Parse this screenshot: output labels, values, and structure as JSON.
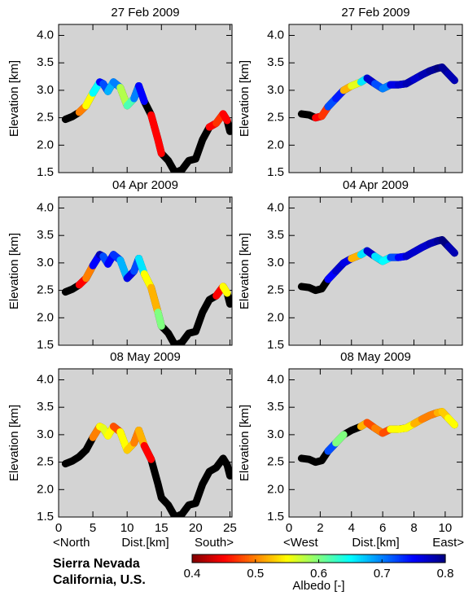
{
  "chart_data": [
    {
      "type": "line",
      "title": "27 Feb  2009",
      "y_label": "Elevation [km]",
      "x": [
        1,
        2,
        3,
        4,
        5,
        6,
        6.5,
        7.2,
        8,
        9,
        10,
        11,
        11.7,
        12.5,
        13.5,
        14.5,
        15,
        16,
        17,
        18,
        19,
        20,
        21,
        22,
        23,
        24,
        24.6,
        25
      ],
      "series": [
        {
          "values": [
            2.47,
            2.52,
            2.6,
            2.72,
            2.95,
            3.15,
            3.12,
            2.98,
            3.15,
            3.05,
            2.72,
            2.85,
            3.08,
            2.8,
            2.55,
            2.1,
            1.85,
            1.72,
            1.5,
            1.55,
            1.72,
            1.75,
            2.1,
            2.33,
            2.4,
            2.57,
            2.45,
            2.25
          ],
          "albedo": [
            null,
            null,
            0.5,
            0.55,
            0.65,
            0.75,
            0.72,
            0.68,
            0.7,
            0.58,
            0.62,
            0.7,
            0.75,
            null,
            0.45,
            0.45,
            null,
            null,
            null,
            null,
            null,
            null,
            null,
            0.45,
            0.47,
            0.45,
            null,
            null
          ]
        }
      ],
      "xlim": [
        0,
        25.3
      ],
      "xticks": [
        0,
        5,
        10,
        15,
        20,
        25
      ],
      "ylim": [
        1.5,
        4.2
      ],
      "yticks": [
        1.5,
        {
          "value": 2,
          "label": "2.0"
        },
        2.5,
        {
          "value": 3,
          "label": "3.0"
        },
        3.5,
        {
          "value": 4,
          "label": "4.0"
        }
      ]
    },
    {
      "type": "line",
      "title": "27 Feb  2009",
      "y_label": "Elevation [km]",
      "x": [
        0.8,
        1.3,
        1.7,
        2.1,
        2.5,
        3,
        3.5,
        4,
        4.6,
        5,
        5.5,
        6,
        6.5,
        7,
        7.5,
        8,
        8.5,
        9,
        9.5,
        9.8,
        10.2,
        10.6
      ],
      "series": [
        {
          "values": [
            2.57,
            2.55,
            2.5,
            2.53,
            2.7,
            2.85,
            3.0,
            3.08,
            3.15,
            3.22,
            3.12,
            3.03,
            3.1,
            3.1,
            3.12,
            3.2,
            3.28,
            3.35,
            3.4,
            3.42,
            3.3,
            3.18
          ],
          "albedo": [
            null,
            null,
            0.45,
            0.47,
            0.72,
            0.74,
            0.52,
            0.56,
            0.66,
            0.77,
            0.72,
            0.7,
            0.76,
            0.77,
            0.78,
            0.77,
            0.78,
            0.79,
            0.8,
            0.79,
            0.78,
            null
          ]
        }
      ],
      "xlim": [
        0,
        11.1
      ],
      "xticks": [
        0,
        2,
        4,
        6,
        8,
        10
      ],
      "ylim": [
        1.5,
        4.2
      ],
      "yticks": [
        1.5,
        {
          "value": 2,
          "label": "2.0"
        },
        2.5,
        {
          "value": 3,
          "label": "3.0"
        },
        3.5,
        {
          "value": 4,
          "label": "4.0"
        }
      ]
    },
    {
      "type": "line",
      "title": "04 Apr  2009",
      "y_label": "Elevation [km]",
      "x": [
        1,
        2,
        3,
        4,
        5,
        6,
        6.5,
        7.2,
        8,
        9,
        10,
        11,
        11.7,
        12.5,
        13.5,
        14.5,
        15,
        16,
        17,
        18,
        19,
        20,
        21,
        22,
        23,
        24,
        24.6,
        25
      ],
      "series": [
        {
          "values": [
            2.47,
            2.52,
            2.6,
            2.72,
            2.95,
            3.15,
            3.12,
            2.98,
            3.15,
            3.05,
            2.72,
            2.85,
            3.08,
            2.8,
            2.55,
            2.1,
            1.85,
            1.72,
            1.5,
            1.55,
            1.72,
            1.75,
            2.1,
            2.33,
            2.4,
            2.57,
            2.45,
            2.25
          ],
          "albedo": [
            null,
            null,
            0.45,
            0.5,
            0.75,
            0.78,
            0.72,
            0.75,
            0.73,
            0.68,
            0.76,
            0.72,
            0.66,
            0.55,
            0.52,
            0.6,
            null,
            null,
            null,
            null,
            null,
            null,
            null,
            null,
            0.45,
            0.55,
            null,
            null
          ]
        }
      ],
      "xlim": [
        0,
        25.3
      ],
      "xticks": [
        0,
        5,
        10,
        15,
        20,
        25
      ],
      "ylim": [
        1.5,
        4.2
      ],
      "yticks": [
        1.5,
        {
          "value": 2,
          "label": "2.0"
        },
        2.5,
        {
          "value": 3,
          "label": "3.0"
        },
        3.5,
        {
          "value": 4,
          "label": "4.0"
        }
      ]
    },
    {
      "type": "line",
      "title": "04 Apr  2009",
      "y_label": "Elevation [km]",
      "x": [
        0.8,
        1.3,
        1.7,
        2.1,
        2.5,
        3,
        3.5,
        4,
        4.6,
        5,
        5.5,
        6,
        6.5,
        7,
        7.5,
        8,
        8.5,
        9,
        9.5,
        9.8,
        10.2,
        10.6
      ],
      "series": [
        {
          "values": [
            2.57,
            2.55,
            2.5,
            2.53,
            2.7,
            2.85,
            3.0,
            3.08,
            3.15,
            3.22,
            3.12,
            3.03,
            3.1,
            3.1,
            3.12,
            3.2,
            3.28,
            3.35,
            3.4,
            3.42,
            3.3,
            3.18
          ],
          "albedo": [
            null,
            null,
            null,
            null,
            0.75,
            0.77,
            0.76,
            0.52,
            0.66,
            0.77,
            0.66,
            0.65,
            0.72,
            0.75,
            0.77,
            0.77,
            0.77,
            0.78,
            0.79,
            0.8,
            0.78,
            null
          ]
        }
      ],
      "xlim": [
        0,
        11.1
      ],
      "xticks": [
        0,
        2,
        4,
        6,
        8,
        10
      ],
      "ylim": [
        1.5,
        4.2
      ],
      "yticks": [
        1.5,
        {
          "value": 2,
          "label": "2.0"
        },
        2.5,
        {
          "value": 3,
          "label": "3.0"
        },
        3.5,
        {
          "value": 4,
          "label": "4.0"
        }
      ]
    },
    {
      "type": "line",
      "title": "08 May  2009",
      "y_label": "Elevation [km]",
      "x_label": [
        "<North",
        "Dist.[km]",
        "South>"
      ],
      "x": [
        1,
        2,
        3,
        4,
        5,
        6,
        6.5,
        7.2,
        8,
        9,
        10,
        11,
        11.7,
        12.5,
        13.5,
        14.5,
        15,
        16,
        17,
        18,
        19,
        20,
        21,
        22,
        23,
        24,
        24.6,
        25
      ],
      "series": [
        {
          "values": [
            2.47,
            2.52,
            2.6,
            2.72,
            2.95,
            3.15,
            3.12,
            2.98,
            3.15,
            3.05,
            2.72,
            2.85,
            3.08,
            2.8,
            2.55,
            2.1,
            1.85,
            1.72,
            1.5,
            1.55,
            1.72,
            1.75,
            2.1,
            2.33,
            2.4,
            2.57,
            2.45,
            2.25
          ],
          "albedo": [
            null,
            null,
            null,
            null,
            0.5,
            0.55,
            0.56,
            0.55,
            0.48,
            0.55,
            0.53,
            0.5,
            0.52,
            0.45,
            null,
            null,
            null,
            null,
            null,
            null,
            null,
            null,
            null,
            null,
            null,
            null,
            null,
            null
          ]
        }
      ],
      "xlim": [
        0,
        25.3
      ],
      "xticks": [
        0,
        5,
        10,
        15,
        20,
        25
      ],
      "ylim": [
        1.5,
        4.2
      ],
      "yticks": [
        1.5,
        {
          "value": 2,
          "label": "2.0"
        },
        2.5,
        {
          "value": 3,
          "label": "3.0"
        },
        3.5,
        {
          "value": 4,
          "label": "4.0"
        }
      ]
    },
    {
      "type": "line",
      "title": "08 May  2009",
      "y_label": "Elevation [km]",
      "x_label": [
        "<West",
        "Dist.[km]",
        "East>"
      ],
      "x": [
        0.8,
        1.3,
        1.7,
        2.1,
        2.5,
        3,
        3.5,
        4,
        4.6,
        5,
        5.5,
        6,
        6.5,
        7,
        7.5,
        8,
        8.5,
        9,
        9.5,
        9.8,
        10.2,
        10.6
      ],
      "series": [
        {
          "values": [
            2.57,
            2.55,
            2.5,
            2.53,
            2.7,
            2.85,
            3.0,
            3.08,
            3.15,
            3.22,
            3.12,
            3.03,
            3.1,
            3.1,
            3.12,
            3.2,
            3.28,
            3.35,
            3.4,
            3.42,
            3.3,
            3.18
          ],
          "albedo": [
            null,
            null,
            null,
            null,
            0.72,
            0.6,
            null,
            null,
            0.52,
            0.48,
            0.5,
            0.48,
            0.55,
            0.55,
            0.55,
            0.52,
            0.5,
            0.5,
            0.52,
            0.53,
            0.55,
            null
          ]
        }
      ],
      "xlim": [
        0,
        11.1
      ],
      "xticks": [
        0,
        2,
        4,
        6,
        8,
        10
      ],
      "ylim": [
        1.5,
        4.2
      ],
      "yticks": [
        1.5,
        {
          "value": 2,
          "label": "2.0"
        },
        2.5,
        {
          "value": 3,
          "label": "3.0"
        },
        3.5,
        {
          "value": 4,
          "label": "4.0"
        }
      ]
    }
  ],
  "colorbar": {
    "label": "Albedo [-]",
    "lim": [
      0.4,
      0.8
    ],
    "ticks": [
      0.4,
      0.5,
      0.6,
      0.7,
      0.8
    ],
    "colormap": [
      "#800000",
      "#ff0000",
      "#ff8000",
      "#ffff00",
      "#80ff80",
      "#00ffff",
      "#0080ff",
      "#0000ff",
      "#000080"
    ]
  },
  "location": [
    "Sierra Nevada",
    "California, U.S."
  ],
  "panel_color": "#d3d3d3",
  "no_data_color": "#000000"
}
